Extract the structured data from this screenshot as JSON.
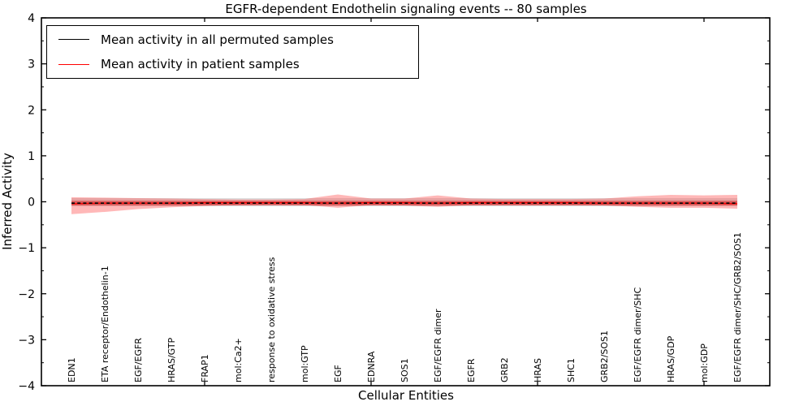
{
  "title": "EGFR-dependent Endothelin signaling events -- 80 samples",
  "axes": {
    "x_label": "Cellular Entities",
    "y_label": "Inferred Activity"
  },
  "legend": {
    "items": [
      {
        "label": "Mean activity in all permuted samples",
        "color": "#000000"
      },
      {
        "label": "Mean activity in patient samples",
        "color": "#ff0000"
      }
    ]
  },
  "chart_data": {
    "type": "line",
    "title": "EGFR-dependent Endothelin signaling events -- 80 samples",
    "xlabel": "Cellular Entities",
    "ylabel": "Inferred Activity",
    "ylim": [
      -4,
      4
    ],
    "grid": false,
    "legend_position": "upper left",
    "y_tick_values": [
      4,
      3,
      2,
      1,
      0,
      -1,
      -2,
      -3,
      -4
    ],
    "y_tick_labels": [
      "4",
      "3",
      "2",
      "1",
      "0",
      "−1",
      "−2",
      "−3",
      "−4"
    ],
    "y_minor_tick_values": [
      3.5,
      2.5,
      1.5,
      0.5,
      -0.5,
      -1.5,
      -2.5,
      -3.5
    ],
    "x_major_tick_indices": [
      4,
      9,
      14,
      19
    ],
    "categories": [
      "EDN1",
      "ETA receptor/Endothelin-1",
      "EGF/EGFR",
      "HRAS/GTP",
      "FRAP1",
      "mol:Ca2+",
      "response to oxidative stress",
      "mol:GTP",
      "EGF",
      "EDNRA",
      "SOS1",
      "EGF/EGFR dimer",
      "EGFR",
      "GRB2",
      "HRAS",
      "SHC1",
      "GRB2/SOS1",
      "EGF/EGFR dimer/SHC",
      "HRAS/GDP",
      "mol:GDP",
      "EGF/EGFR dimer/SHC/GRB2/SOS1"
    ],
    "series": [
      {
        "name": "Mean activity in all permuted samples",
        "color": "#000000",
        "style": "dashed",
        "values": [
          -0.03,
          -0.03,
          -0.03,
          -0.03,
          -0.03,
          -0.03,
          -0.03,
          -0.03,
          -0.03,
          -0.03,
          -0.03,
          -0.03,
          -0.03,
          -0.03,
          -0.03,
          -0.03,
          -0.03,
          -0.03,
          -0.03,
          -0.03,
          -0.03
        ]
      },
      {
        "name": "Mean activity in patient samples",
        "color": "#ff0000",
        "style": "solid",
        "values": [
          -0.04,
          -0.03,
          -0.03,
          -0.03,
          -0.02,
          -0.02,
          -0.02,
          -0.02,
          -0.03,
          -0.02,
          -0.02,
          -0.03,
          -0.02,
          -0.02,
          -0.02,
          -0.02,
          -0.03,
          -0.03,
          -0.03,
          -0.03,
          -0.04
        ]
      }
    ],
    "bands": [
      {
        "name": "permuted-samples-spread",
        "color": "#999999",
        "opacity": 0.32,
        "upper": 0.08,
        "lower": -0.1
      },
      {
        "name": "patient-samples-spread",
        "color": "#ff3333",
        "opacity": 0.35,
        "upper": [
          0.1,
          0.09,
          0.08,
          0.07,
          0.06,
          0.05,
          0.05,
          0.06,
          0.16,
          0.07,
          0.07,
          0.14,
          0.07,
          0.06,
          0.06,
          0.06,
          0.07,
          0.12,
          0.15,
          0.14,
          0.15
        ],
        "lower": [
          -0.27,
          -0.22,
          -0.16,
          -0.12,
          -0.09,
          -0.07,
          -0.06,
          -0.07,
          -0.13,
          -0.07,
          -0.08,
          -0.11,
          -0.07,
          -0.07,
          -0.07,
          -0.07,
          -0.08,
          -0.11,
          -0.13,
          -0.13,
          -0.15
        ]
      },
      {
        "name": "patient-samples-core",
        "color": "#cc2222",
        "opacity": 0.55,
        "upper": 0.02,
        "lower": -0.08
      }
    ]
  }
}
